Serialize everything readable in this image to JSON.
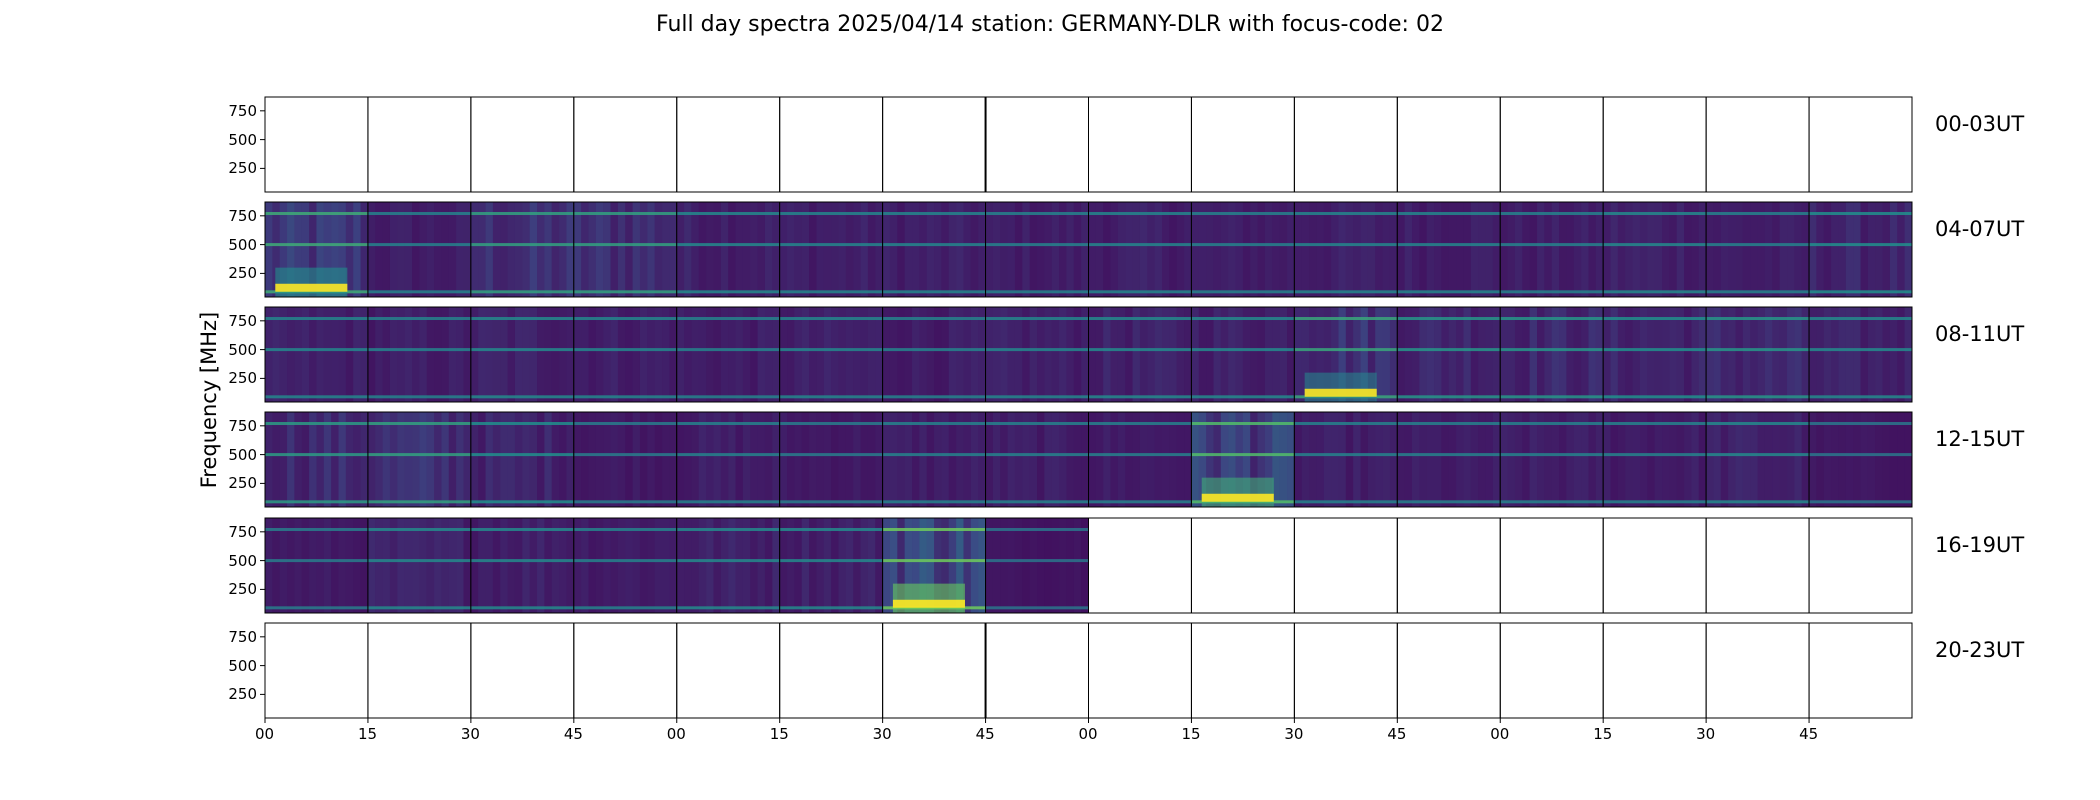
{
  "chart_data": {
    "type": "heatmap",
    "title": "Full day spectra 2025/04/14 station: GERMANY-DLR with focus-code: 02",
    "ylabel": "Frequency [MHz]",
    "xlabel": "",
    "colormap": "viridis",
    "y_ticks": [
      "750",
      "500",
      "250"
    ],
    "ylim": [
      45,
      870
    ],
    "x_tick_labels": [
      "00",
      "15",
      "30",
      "45",
      "00",
      "15",
      "30",
      "45",
      "00",
      "15",
      "30",
      "45",
      "00",
      "15",
      "30",
      "45"
    ],
    "panels_per_row": 16,
    "minutes_per_panel": 15,
    "rows": [
      {
        "label": "00-03UT",
        "panels": [
          0,
          0,
          0,
          0,
          0,
          0,
          0,
          0,
          0,
          0,
          0,
          0,
          0,
          0,
          0,
          0
        ]
      },
      {
        "label": "04-07UT",
        "panels": [
          1,
          1,
          1,
          1,
          1,
          1,
          1,
          1,
          1,
          1,
          1,
          1,
          1,
          1,
          1,
          1
        ]
      },
      {
        "label": "08-11UT",
        "panels": [
          1,
          1,
          1,
          1,
          1,
          1,
          1,
          1,
          1,
          1,
          1,
          1,
          1,
          1,
          1,
          1
        ]
      },
      {
        "label": "12-15UT",
        "panels": [
          1,
          1,
          1,
          1,
          1,
          1,
          1,
          1,
          1,
          1,
          1,
          1,
          1,
          1,
          1,
          1
        ]
      },
      {
        "label": "16-19UT",
        "panels": [
          1,
          1,
          1,
          1,
          1,
          1,
          1,
          1,
          0,
          0,
          0,
          0,
          0,
          0,
          0,
          0
        ]
      },
      {
        "label": "20-23UT",
        "panels": [
          0,
          0,
          0,
          0,
          0,
          0,
          0,
          0,
          0,
          0,
          0,
          0,
          0,
          0,
          0,
          0
        ]
      }
    ],
    "panel_intensity": [
      [
        0,
        0,
        0,
        0,
        0,
        0,
        0,
        0,
        0,
        0,
        0,
        0,
        0,
        0,
        0,
        0
      ],
      [
        0.55,
        0.2,
        0.45,
        0.45,
        0.25,
        0.22,
        0.22,
        0.2,
        0.22,
        0.2,
        0.22,
        0.22,
        0.2,
        0.25,
        0.2,
        0.3
      ],
      [
        0.22,
        0.2,
        0.25,
        0.22,
        0.2,
        0.22,
        0.2,
        0.22,
        0.25,
        0.25,
        0.5,
        0.35,
        0.35,
        0.3,
        0.35,
        0.25
      ],
      [
        0.4,
        0.45,
        0.3,
        0.15,
        0.2,
        0.15,
        0.2,
        0.2,
        0.18,
        0.7,
        0.2,
        0.18,
        0.2,
        0.2,
        0.25,
        0.1
      ],
      [
        0.15,
        0.25,
        0.25,
        0.2,
        0.25,
        0.25,
        0.85,
        0.08,
        0,
        0,
        0,
        0,
        0,
        0,
        0,
        0
      ],
      [
        0,
        0,
        0,
        0,
        0,
        0,
        0,
        0,
        0,
        0,
        0,
        0,
        0,
        0,
        0,
        0
      ]
    ]
  }
}
